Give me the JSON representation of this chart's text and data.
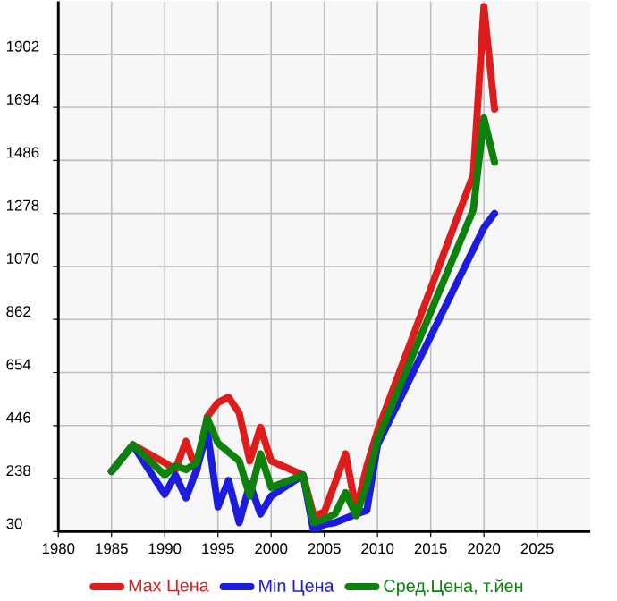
{
  "chart_data": {
    "type": "line",
    "xlim": [
      1980,
      2030
    ],
    "ylim": [
      30,
      2110
    ],
    "xticks": [
      1980,
      1985,
      1990,
      1995,
      2000,
      2005,
      2010,
      2015,
      2020,
      2025
    ],
    "yticks": [
      30,
      238,
      446,
      654,
      862,
      1070,
      1278,
      1486,
      1694,
      1902
    ],
    "grid": true,
    "legend": "bottom",
    "series": [
      {
        "name": "Max Цена",
        "color": "#dd1c1c",
        "x": [
          1985,
          1987,
          1990,
          1991,
          1992,
          1993,
          1994,
          1995,
          1996,
          1997,
          1998,
          1999,
          2000,
          2003,
          2004,
          2005,
          2007,
          2008,
          2009,
          2010,
          2019,
          2020,
          2021
        ],
        "values": [
          266,
          370,
          300,
          273,
          384,
          266,
          481,
          536,
          557,
          495,
          307,
          439,
          307,
          252,
          92,
          106,
          335,
          113,
          287,
          425,
          1430,
          2089,
          1687
        ]
      },
      {
        "name": "Min Цена",
        "color": "#1c1cdd",
        "x": [
          1985,
          1987,
          1990,
          1991,
          1992,
          1993,
          1994,
          1995,
          1996,
          1997,
          1998,
          1999,
          2000,
          2003,
          2004,
          2005,
          2006,
          2008,
          2009,
          2010,
          2020,
          2021
        ],
        "values": [
          266,
          370,
          176,
          252,
          162,
          273,
          425,
          127,
          231,
          65,
          217,
          99,
          169,
          252,
          30,
          58,
          65,
          99,
          113,
          370,
          1222,
          1278
        ]
      },
      {
        "name": "Сред.Цена, т.йен",
        "color": "#0c820c",
        "x": [
          1985,
          1987,
          1990,
          1991,
          1992,
          1993,
          1994,
          1995,
          1997,
          1998,
          1999,
          2000,
          2003,
          2004,
          2005,
          2006,
          2007,
          2008,
          2009,
          2010,
          2019,
          2020,
          2021
        ],
        "values": [
          266,
          370,
          252,
          287,
          273,
          300,
          474,
          377,
          307,
          169,
          335,
          203,
          252,
          65,
          79,
          99,
          183,
          92,
          217,
          390,
          1292,
          1652,
          1479
        ]
      }
    ]
  }
}
